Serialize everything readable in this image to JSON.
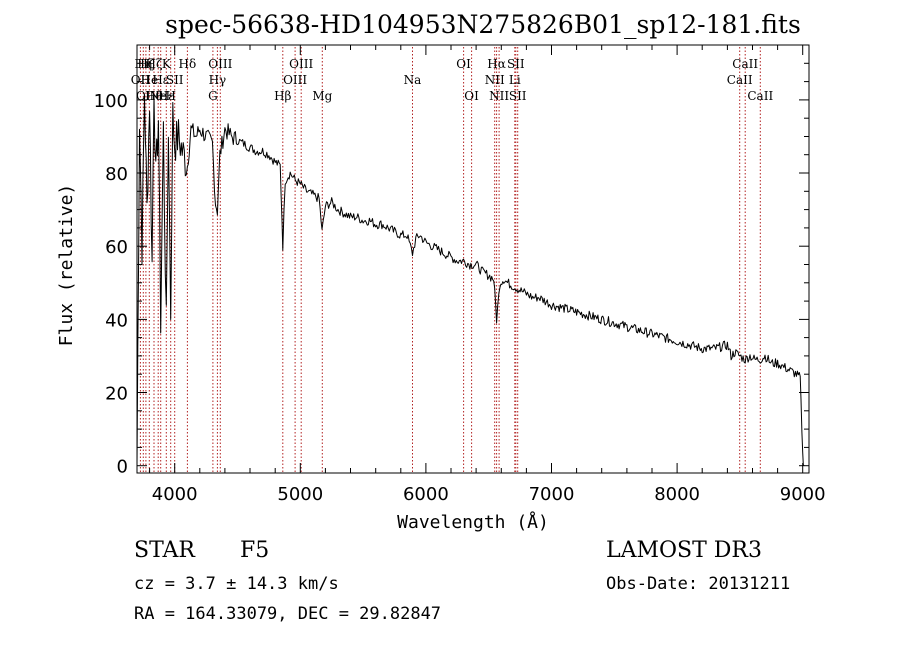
{
  "chart_data": {
    "type": "line",
    "title": "spec-56638-HD104953N275826B01_sp12-181.fits",
    "xlabel": "Wavelength (Å)",
    "ylabel": "Flux (relative)",
    "xlim": [
      3700,
      9050
    ],
    "ylim": [
      -2,
      115
    ],
    "xticks": [
      4000,
      5000,
      6000,
      7000,
      8000,
      9000
    ],
    "yticks": [
      0,
      20,
      40,
      60,
      80,
      100
    ],
    "grid": false,
    "series": [
      {
        "name": "flux",
        "x": [
          3700,
          3720,
          3740,
          3760,
          3780,
          3800,
          3820,
          3835,
          3850,
          3870,
          3889,
          3910,
          3933,
          3950,
          3968,
          3985,
          4000,
          4030,
          4060,
          4101,
          4130,
          4170,
          4200,
          4250,
          4300,
          4325,
          4340,
          4360,
          4400,
          4450,
          4500,
          4550,
          4600,
          4650,
          4700,
          4750,
          4800,
          4840,
          4861,
          4880,
          4920,
          4960,
          5000,
          5050,
          5100,
          5150,
          5173,
          5200,
          5250,
          5300,
          5350,
          5400,
          5450,
          5500,
          5550,
          5600,
          5650,
          5700,
          5750,
          5800,
          5850,
          5893,
          5920,
          5950,
          6000,
          6050,
          6100,
          6150,
          6200,
          6250,
          6300,
          6350,
          6400,
          6450,
          6500,
          6540,
          6563,
          6590,
          6620,
          6650,
          6700,
          6750,
          6800,
          6850,
          6900,
          6950,
          7000,
          7100,
          7200,
          7300,
          7400,
          7500,
          7600,
          7700,
          7800,
          7900,
          8000,
          8100,
          8200,
          8300,
          8400,
          8430,
          8460,
          8500,
          8542,
          8580,
          8620,
          8662,
          8700,
          8750,
          8800,
          8850,
          8900,
          8950,
          8980,
          9000,
          9010
        ],
        "values": [
          0,
          95,
          60,
          102,
          70,
          100,
          55,
          105,
          78,
          95,
          40,
          92,
          38,
          93,
          42,
          96,
          88,
          90,
          86,
          82,
          92,
          90,
          92,
          90,
          88,
          72,
          70,
          85,
          92,
          90,
          89,
          88,
          87,
          86,
          86,
          85,
          83,
          82,
          60,
          78,
          80,
          78,
          77,
          75,
          74,
          73,
          64,
          71,
          72,
          70,
          69,
          68,
          68,
          67,
          67,
          66,
          66,
          65,
          64,
          63,
          63,
          58,
          62,
          63,
          61,
          60,
          59,
          58,
          57,
          56,
          56,
          55,
          55,
          53,
          52,
          51,
          40,
          50,
          51,
          50,
          49,
          48,
          47,
          46,
          46,
          45,
          44,
          43,
          42,
          41,
          40,
          39,
          38,
          37,
          36,
          35,
          34,
          33,
          32,
          32,
          33,
          30,
          31,
          30,
          29,
          30,
          29,
          29,
          30,
          28,
          28,
          27,
          26,
          25,
          24,
          3,
          0
        ]
      }
    ],
    "lines": [
      {
        "x": 3727,
        "labels": [
          {
            "text": "OII",
            "row": 2
          }
        ]
      },
      {
        "x": 3750,
        "labels": [
          {
            "text": "Hη",
            "row": 1
          },
          {
            "text": "OI",
            "row": 3
          }
        ]
      },
      {
        "x": 3771,
        "labels": [
          {
            "text": "Hζ",
            "row": 1
          }
        ]
      },
      {
        "x": 3798,
        "labels": [
          {
            "text": "He",
            "row": 2
          }
        ]
      },
      {
        "x": 3835,
        "labels": [
          {
            "text": "Hζ",
            "row": 1
          },
          {
            "text": "Hθ",
            "row": 3
          }
        ]
      },
      {
        "x": 3869,
        "labels": [
          {
            "text": "Ne",
            "row": 3
          }
        ]
      },
      {
        "x": 3889,
        "labels": [
          {
            "text": "Hε",
            "row": 2
          }
        ]
      },
      {
        "x": 3933,
        "labels": [
          {
            "text": "K",
            "row": 1
          },
          {
            "text": "Hε",
            "row": 3
          }
        ]
      },
      {
        "x": 3968,
        "labels": [
          {
            "text": "H",
            "row": 3
          }
        ]
      },
      {
        "x": 4000,
        "labels": [
          {
            "text": "SII",
            "row": 2
          }
        ]
      },
      {
        "x": 4101,
        "labels": [
          {
            "text": "Hδ",
            "row": 1
          }
        ]
      },
      {
        "x": 4304,
        "labels": [
          {
            "text": "G",
            "row": 3
          }
        ]
      },
      {
        "x": 4340,
        "labels": [
          {
            "text": "Hγ",
            "row": 2
          }
        ]
      },
      {
        "x": 4363,
        "labels": [
          {
            "text": "OIII",
            "row": 1
          }
        ]
      },
      {
        "x": 4861,
        "labels": [
          {
            "text": "Hβ",
            "row": 3
          }
        ]
      },
      {
        "x": 4959,
        "labels": [
          {
            "text": "OIII",
            "row": 2
          }
        ]
      },
      {
        "x": 5007,
        "labels": [
          {
            "text": "OIII",
            "row": 1
          }
        ]
      },
      {
        "x": 5175,
        "labels": [
          {
            "text": "Mg",
            "row": 3
          }
        ]
      },
      {
        "x": 5893,
        "labels": [
          {
            "text": "Na",
            "row": 2
          }
        ]
      },
      {
        "x": 6300,
        "labels": [
          {
            "text": "OI",
            "row": 1
          }
        ]
      },
      {
        "x": 6364,
        "labels": [
          {
            "text": "OI",
            "row": 3
          }
        ]
      },
      {
        "x": 6548,
        "labels": [
          {
            "text": "NII",
            "row": 2
          }
        ]
      },
      {
        "x": 6563,
        "labels": [
          {
            "text": "Hα",
            "row": 1
          }
        ]
      },
      {
        "x": 6583,
        "labels": [
          {
            "text": "NII",
            "row": 3
          }
        ]
      },
      {
        "x": 6708,
        "labels": [
          {
            "text": "Li",
            "row": 2
          }
        ]
      },
      {
        "x": 6716,
        "labels": [
          {
            "text": "SII",
            "row": 1
          }
        ]
      },
      {
        "x": 6731,
        "labels": [
          {
            "text": "SII",
            "row": 3
          }
        ]
      },
      {
        "x": 8498,
        "labels": [
          {
            "text": "CaII",
            "row": 2
          }
        ]
      },
      {
        "x": 8542,
        "labels": [
          {
            "text": "CaII",
            "row": 1
          }
        ]
      },
      {
        "x": 8662,
        "labels": [
          {
            "text": "CaII",
            "row": 3
          }
        ]
      }
    ]
  },
  "info": {
    "class_type": "STAR",
    "subclass": "F5",
    "survey": "LAMOST DR3",
    "cz": "cz = 3.7 ± 14.3 km/s",
    "obs_date": "Obs-Date: 20131211",
    "radec": "RA = 164.33079, DEC =  29.82847"
  },
  "colors": {
    "axis": "#000000",
    "spectrum": "#000000",
    "line_marker": "#b22222",
    "background": "#ffffff"
  }
}
